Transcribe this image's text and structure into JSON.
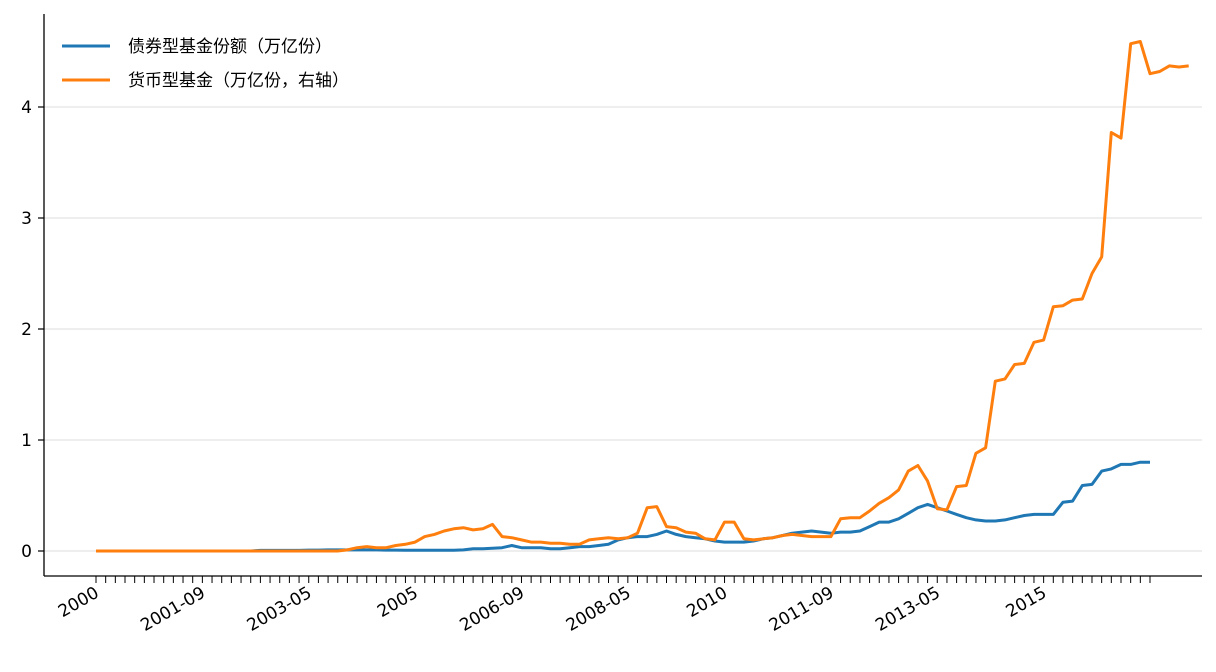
{
  "chart_data": {
    "type": "line",
    "x_tick_labels": [
      "2000",
      "2001-09",
      "2003-05",
      "2005",
      "2006-09",
      "2008-05",
      "2010",
      "2011-09",
      "2013-05",
      "2015"
    ],
    "y_tick_labels": [
      "0",
      "1",
      "2",
      "3",
      "4"
    ],
    "ylim": [
      -0.22,
      4.9
    ],
    "grid": "horizontal",
    "legend_position": "top-left",
    "x_sampling": "quarterly",
    "x_start": "2000-Q1",
    "series": [
      {
        "name": "债券型基金份额（万亿份）",
        "color": "#1f77b4",
        "values": [
          0,
          0,
          0,
          0,
          0,
          0,
          0,
          0,
          0,
          0,
          0,
          0,
          0,
          0,
          0,
          0,
          0,
          0.005,
          0.005,
          0.005,
          0.005,
          0.005,
          0.008,
          0.008,
          0.01,
          0.01,
          0.01,
          0.01,
          0.01,
          0.01,
          0.008,
          0.008,
          0.006,
          0.006,
          0.006,
          0.006,
          0.006,
          0.006,
          0.01,
          0.02,
          0.02,
          0.025,
          0.03,
          0.05,
          0.03,
          0.03,
          0.03,
          0.02,
          0.02,
          0.03,
          0.04,
          0.04,
          0.05,
          0.06,
          0.1,
          0.12,
          0.13,
          0.13,
          0.15,
          0.18,
          0.15,
          0.13,
          0.12,
          0.11,
          0.09,
          0.08,
          0.08,
          0.08,
          0.09,
          0.11,
          0.12,
          0.14,
          0.16,
          0.17,
          0.18,
          0.17,
          0.16,
          0.17,
          0.17,
          0.18,
          0.22,
          0.26,
          0.26,
          0.29,
          0.34,
          0.39,
          0.42,
          0.39,
          0.36,
          0.33,
          0.3,
          0.28,
          0.27,
          0.27,
          0.28,
          0.3,
          0.32,
          0.33,
          0.33,
          0.33,
          0.44,
          0.45,
          0.59,
          0.6,
          0.72,
          0.74,
          0.78,
          0.78,
          0.8,
          0.8
        ]
      },
      {
        "name": "货币型基金（万亿份，右轴）",
        "color": "#ff7f0e",
        "values": [
          0,
          0,
          0,
          0,
          0,
          0,
          0,
          0,
          0,
          0,
          0,
          0,
          0,
          0,
          0,
          0,
          0,
          0,
          0,
          0,
          0,
          0,
          0,
          0,
          0,
          0,
          0.01,
          0.03,
          0.04,
          0.03,
          0.03,
          0.05,
          0.06,
          0.08,
          0.13,
          0.15,
          0.18,
          0.2,
          0.21,
          0.19,
          0.2,
          0.24,
          0.13,
          0.12,
          0.1,
          0.08,
          0.08,
          0.07,
          0.07,
          0.06,
          0.06,
          0.1,
          0.11,
          0.12,
          0.11,
          0.12,
          0.16,
          0.39,
          0.4,
          0.22,
          0.21,
          0.17,
          0.16,
          0.11,
          0.1,
          0.26,
          0.26,
          0.11,
          0.1,
          0.11,
          0.12,
          0.14,
          0.15,
          0.14,
          0.13,
          0.13,
          0.13,
          0.29,
          0.3,
          0.3,
          0.36,
          0.43,
          0.48,
          0.55,
          0.72,
          0.77,
          0.63,
          0.38,
          0.37,
          0.58,
          0.59,
          0.88,
          0.93,
          1.53,
          1.55,
          1.68,
          1.69,
          1.88,
          1.9,
          2.2,
          2.21,
          2.26,
          2.27,
          2.5,
          2.65,
          3.77,
          3.72,
          4.57,
          4.59,
          4.3,
          4.32,
          4.37,
          4.36,
          4.37
        ]
      }
    ]
  }
}
